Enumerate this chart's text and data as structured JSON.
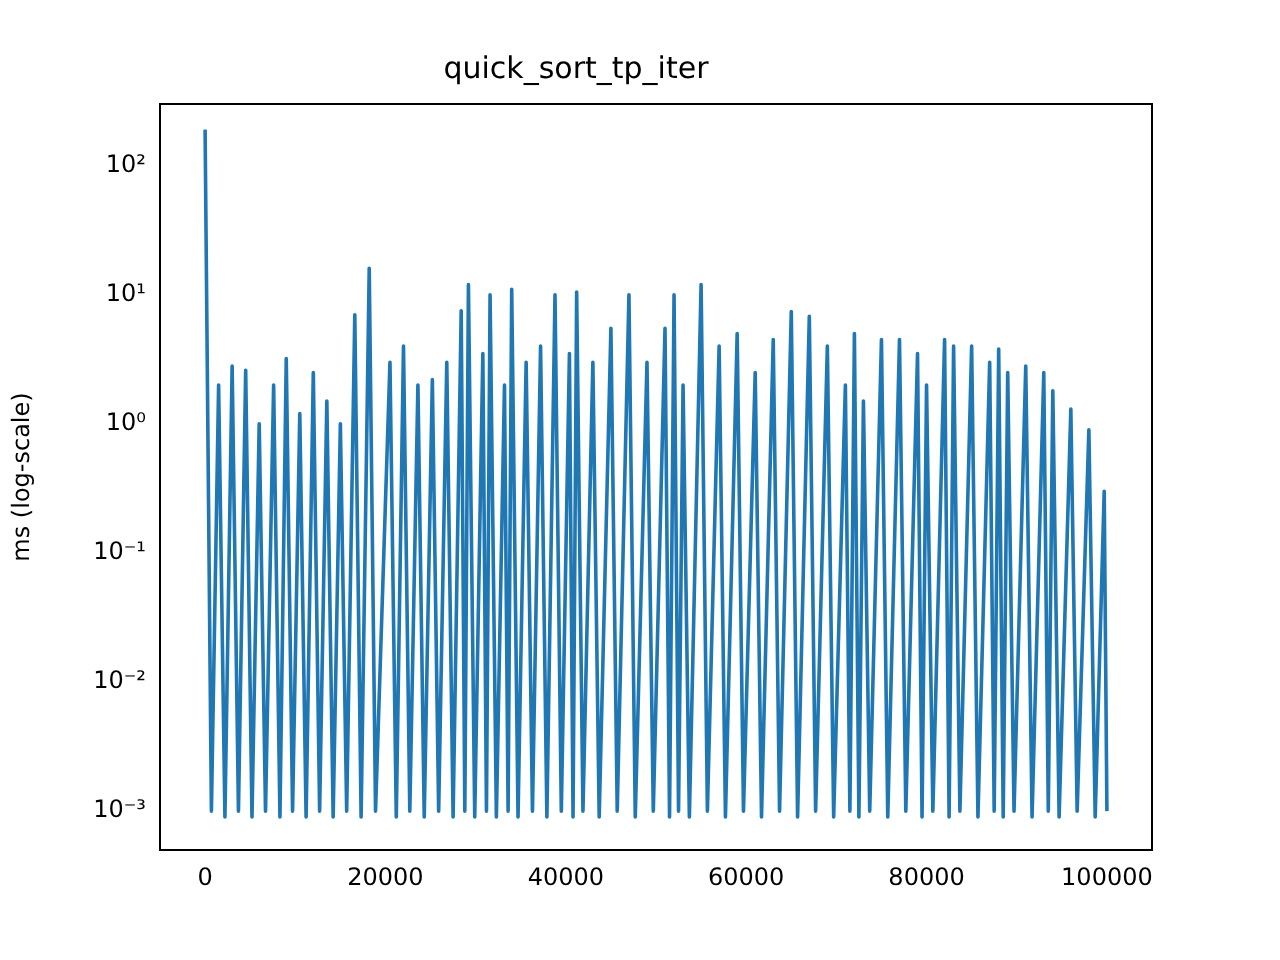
{
  "chart_data": {
    "type": "line",
    "title": "quick_sort_tp_iter",
    "ylabel": "ms (log-scale)",
    "log": "y",
    "grid": false,
    "legend": false,
    "marker": "none",
    "line_style": "solid",
    "xlim": [
      -5000,
      105000
    ],
    "xticks": [
      0,
      20000,
      40000,
      60000,
      80000,
      100000
    ],
    "ylim": [
      0.0005,
      300
    ],
    "yticks": [
      {
        "value": 0.001,
        "label": "10⁻³"
      },
      {
        "value": 0.01,
        "label": "10⁻²"
      },
      {
        "value": 0.1,
        "label": "10⁻¹"
      },
      {
        "value": 1,
        "label": "10⁰"
      },
      {
        "value": 10,
        "label": "10¹"
      },
      {
        "value": 100,
        "label": "10²"
      }
    ],
    "series": [
      {
        "color": "#1f77b4",
        "x": [
          0,
          700,
          1500,
          2200,
          3000,
          3700,
          4500,
          5200,
          6000,
          6700,
          7600,
          8300,
          9000,
          9700,
          10500,
          11200,
          12000,
          12700,
          13500,
          14200,
          15000,
          15700,
          16600,
          17300,
          18200,
          18900,
          20500,
          21200,
          22000,
          22700,
          23600,
          24300,
          25200,
          25900,
          26800,
          27500,
          28400,
          28800,
          29200,
          29900,
          30800,
          31200,
          31600,
          32300,
          33200,
          33600,
          34000,
          34700,
          35600,
          36300,
          37200,
          37900,
          38800,
          39500,
          40400,
          40800,
          41200,
          41900,
          43000,
          43700,
          45000,
          45700,
          47000,
          47700,
          49000,
          49700,
          51000,
          51500,
          52000,
          52500,
          53000,
          53700,
          55000,
          55700,
          57000,
          57700,
          59000,
          59700,
          61000,
          61700,
          63000,
          63700,
          65000,
          65700,
          67000,
          67700,
          69000,
          69700,
          71000,
          71500,
          72000,
          72500,
          73000,
          73700,
          75000,
          75700,
          77000,
          77700,
          79000,
          79500,
          80000,
          80700,
          82000,
          82500,
          83000,
          83700,
          85000,
          85700,
          87000,
          87500,
          88000,
          88500,
          89000,
          89700,
          91000,
          91700,
          93000,
          93500,
          94000,
          94700,
          96000,
          96700,
          98000,
          98700,
          99700,
          100000
        ],
        "values": [
          190,
          0.001,
          2.0,
          0.0009,
          2.8,
          0.001,
          2.6,
          0.0009,
          1.0,
          0.001,
          2.0,
          0.0009,
          3.2,
          0.001,
          1.2,
          0.0009,
          2.5,
          0.001,
          1.5,
          0.0009,
          1.0,
          0.001,
          7.0,
          0.0009,
          16,
          0.001,
          3.0,
          0.0009,
          4.0,
          0.001,
          2.0,
          0.0009,
          2.2,
          0.001,
          3.0,
          0.0009,
          7.5,
          0.001,
          12,
          0.0009,
          3.5,
          0.001,
          10,
          0.0009,
          2.0,
          0.001,
          11,
          0.0009,
          3.0,
          0.001,
          4.0,
          0.0009,
          10,
          0.001,
          3.5,
          0.0009,
          10.5,
          0.001,
          3.0,
          0.0009,
          5.5,
          0.001,
          10,
          0.0009,
          3.0,
          0.001,
          5.5,
          0.0009,
          10,
          0.001,
          2.0,
          0.0009,
          12,
          0.001,
          4.0,
          0.0009,
          5.0,
          0.001,
          2.5,
          0.0009,
          4.5,
          0.001,
          7.4,
          0.0009,
          6.8,
          0.001,
          4.0,
          0.0009,
          2.0,
          0.001,
          5.0,
          0.0009,
          1.5,
          0.001,
          4.5,
          0.0009,
          4.5,
          0.001,
          3.5,
          0.0009,
          2.0,
          0.001,
          4.5,
          0.0009,
          4.0,
          0.001,
          4.0,
          0.0009,
          3.0,
          0.001,
          3.8,
          0.0009,
          2.5,
          0.001,
          2.8,
          0.0009,
          2.5,
          0.001,
          1.8,
          0.0009,
          1.3,
          0.001,
          0.9,
          0.0009,
          0.3,
          0.001
        ]
      }
    ]
  }
}
